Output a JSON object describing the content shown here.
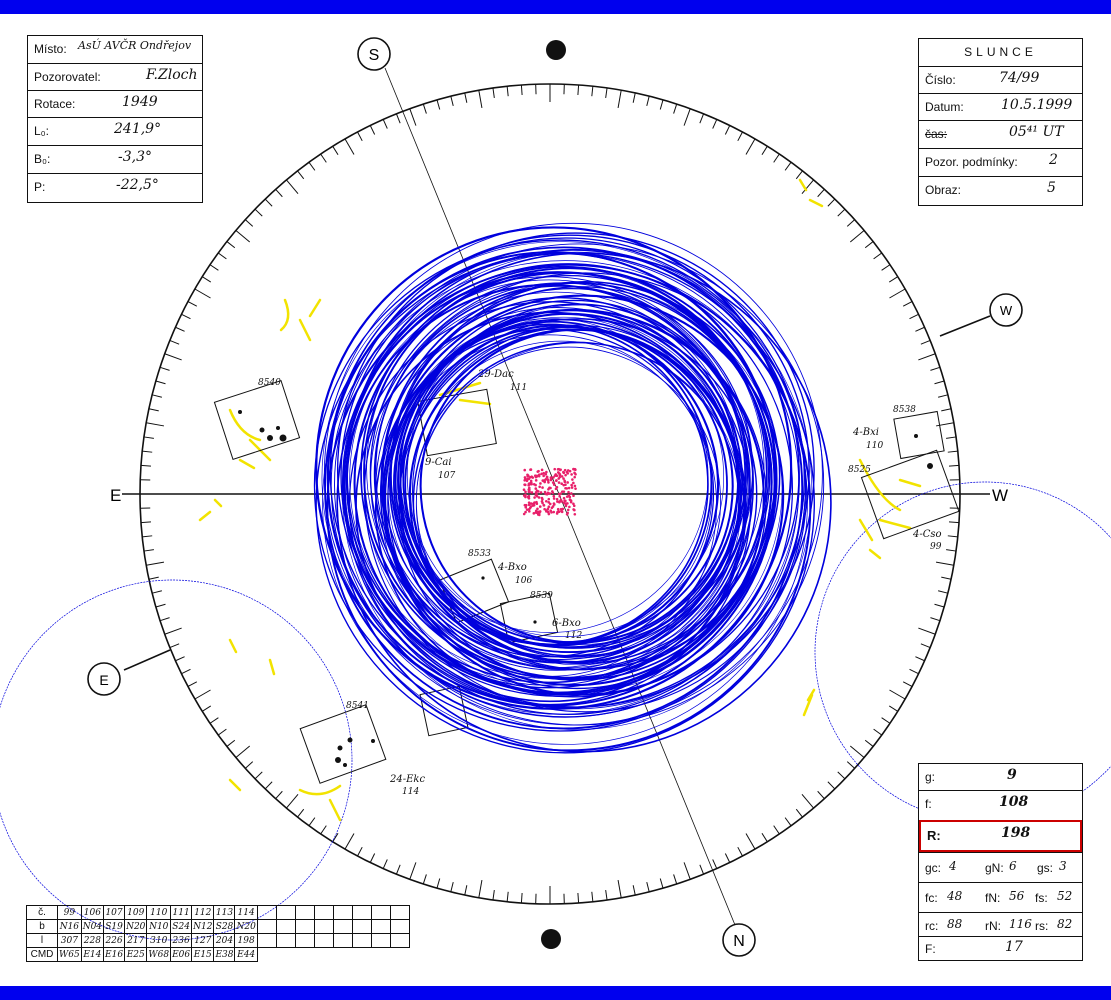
{
  "header": {
    "misto_label": "Místo:",
    "misto_value": "AsÚ AVČR Ondřejov",
    "pozorovatel_label": "Pozorovatel:",
    "pozorovatel_value": "F.Zloch",
    "rotace_label": "Rotace:",
    "rotace_value": "1949",
    "l0_label": "L₀:",
    "l0_value": "241,9°",
    "b0_label": "B₀:",
    "b0_value": "-3,3°",
    "p_label": "P:",
    "p_value": "-22,5°"
  },
  "slunce": {
    "title": "SLUNCE",
    "cislo_label": "Číslo:",
    "cislo_value": "74/99",
    "datum_label": "Datum:",
    "datum_value": "10.5.1999",
    "cas_label": "čas:",
    "cas_value": "05⁴¹ UT",
    "podminky_label": "Pozor. podmínky:",
    "podminky_value": "2",
    "obraz_label": "Obraz:",
    "obraz_value": "5"
  },
  "directions": {
    "s": "S",
    "n": "N",
    "e": "E",
    "w": "W",
    "e_small": "E",
    "w_small": "W"
  },
  "groups": [
    {
      "num": "8540",
      "cls": ""
    },
    {
      "num": "",
      "cls": "29-Dac",
      "cmd": "111"
    },
    {
      "num": "",
      "cls": "9-Cai",
      "cmd": "107"
    },
    {
      "num": "8538",
      "cls": "4-Bxi",
      "cmd": "110"
    },
    {
      "num": "8525",
      "cls": "4-Cso",
      "cmd": "99"
    },
    {
      "num": "8533",
      "cls": "4-Bxo",
      "cmd": "106"
    },
    {
      "num": "8539",
      "cls": "6-Bxo",
      "cmd": "112"
    },
    {
      "num": "8541",
      "cls": "24-Ekc",
      "cmd": "114"
    }
  ],
  "table": {
    "rows": [
      {
        "label": "č.",
        "cells": [
          "99",
          "106",
          "107",
          "109",
          "110",
          "111",
          "112",
          "113",
          "114",
          "",
          "",
          "",
          "",
          "",
          "",
          "",
          ""
        ]
      },
      {
        "label": "b",
        "cells": [
          "N16",
          "N04",
          "S19",
          "N20",
          "N10",
          "S24",
          "N12",
          "S28",
          "N20",
          "",
          "",
          "",
          "",
          "",
          "",
          "",
          ""
        ]
      },
      {
        "label": "l",
        "cells": [
          "307",
          "228",
          "226",
          "217",
          "310",
          "236",
          "127",
          "204",
          "198",
          "",
          "",
          "",
          "",
          "",
          "",
          "",
          ""
        ]
      },
      {
        "label": "CMD",
        "cells": [
          "W65",
          "E14",
          "E16",
          "E25",
          "W68",
          "E06",
          "E15",
          "E38",
          "E44"
        ]
      }
    ]
  },
  "summary": {
    "g_label": "g:",
    "g_value": "9",
    "f_label": "f:",
    "f_value": "108",
    "r_label": "R:",
    "r_value": "198",
    "gc_label": "gc:",
    "gc_value": "4",
    "gn_label": "gN:",
    "gn_value": "6",
    "gs_label": "gs:",
    "gs_value": "3",
    "fc_label": "fc:",
    "fc_value": "48",
    "fn_label": "fN:",
    "fn_value": "56",
    "fs_label": "fs:",
    "fs_value": "52",
    "rc_label": "rc:",
    "rc_value": "88",
    "rn_label": "rN:",
    "rn_value": "116",
    "rs_label": "rs:",
    "rs_value": "82",
    "F_label": "F:",
    "F_value": "17"
  },
  "colors": {
    "frame": "#0000ee",
    "trail": "#0000dd",
    "center": "#e8206a",
    "sketch": "#f2e300",
    "highlight": "#cc0000"
  }
}
